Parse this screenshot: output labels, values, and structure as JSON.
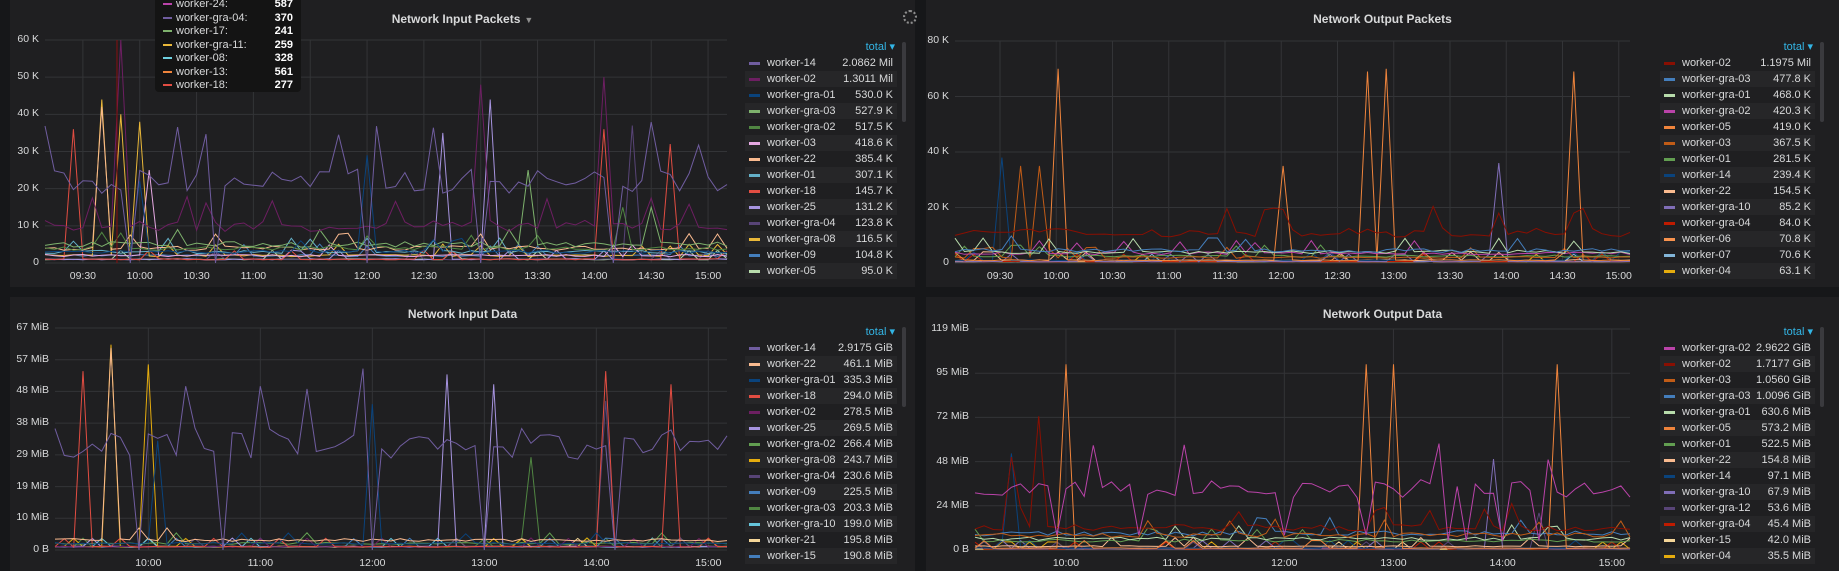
{
  "colors": {
    "accent": "#33b5e5",
    "panel_bg": "#1f1f21",
    "page_bg": "#161719"
  },
  "legend_header": "total",
  "tooltip": {
    "rows": [
      {
        "name": "worker-24:",
        "value": "587",
        "color": "#ba43a9"
      },
      {
        "name": "worker-gra-04:",
        "value": "370",
        "color": "#705da0"
      },
      {
        "name": "worker-17:",
        "value": "241",
        "color": "#7eb26d"
      },
      {
        "name": "worker-gra-11:",
        "value": "259",
        "color": "#eab839"
      },
      {
        "name": "worker-08:",
        "value": "328",
        "color": "#6ed0e0"
      },
      {
        "name": "worker-13:",
        "value": "561",
        "color": "#ef843c"
      },
      {
        "name": "worker-18:",
        "value": "277",
        "color": "#e24d42"
      }
    ]
  },
  "chart_data": [
    {
      "type": "line",
      "title": "Network Input Packets",
      "has_menu": true,
      "x_range_minutes": [
        550,
        910
      ],
      "xticks": [
        "09:30",
        "10:00",
        "10:30",
        "11:00",
        "11:30",
        "12:00",
        "12:30",
        "13:00",
        "13:30",
        "14:00",
        "14:30",
        "15:00"
      ],
      "xtick_minutes": [
        570,
        600,
        630,
        660,
        690,
        720,
        750,
        780,
        810,
        840,
        870,
        900
      ],
      "yticks": [
        "0",
        "10 K",
        "20 K",
        "30 K",
        "40 K",
        "50 K",
        "60 K"
      ],
      "ylim": [
        0,
        60
      ],
      "yunit": "K",
      "series": [
        {
          "name": "worker-14",
          "total": "2.0862 Mil",
          "color": "#705da0",
          "base": 22,
          "events": [
            [
              594,
              0
            ],
            [
              640,
              0
            ],
            [
              722,
              0
            ],
            [
              782,
              0
            ],
            [
              850,
              0
            ]
          ]
        },
        {
          "name": "worker-02",
          "total": "1.3011 Mil",
          "color": "#6d1f62",
          "base": 10,
          "events": [
            [
              588,
              60
            ],
            [
              780,
              48
            ],
            [
              845,
              50
            ]
          ]
        },
        {
          "name": "worker-gra-01",
          "total": "530.0 K",
          "color": "#0a437c",
          "base": 3,
          "events": [
            [
              602,
              22
            ],
            [
              720,
              29
            ]
          ]
        },
        {
          "name": "worker-gra-03",
          "total": "527.9 K",
          "color": "#7eb26d",
          "base": 5,
          "events": [
            [
              805,
              25
            ],
            [
              870,
              15
            ]
          ]
        },
        {
          "name": "worker-gra-02",
          "total": "517.5 K",
          "color": "#508642",
          "base": 4,
          "events": [
            [
              855,
              15
            ]
          ]
        },
        {
          "name": "worker-03",
          "total": "418.6 K",
          "color": "#e5a8e2",
          "base": 2,
          "events": [
            [
              605,
              25
            ]
          ]
        },
        {
          "name": "worker-22",
          "total": "385.4 K",
          "color": "#f9ba8f",
          "base": 4,
          "events": [
            [
              580,
              42
            ]
          ]
        },
        {
          "name": "worker-01",
          "total": "307.1 K",
          "color": "#64b0c8",
          "base": 3,
          "events": []
        },
        {
          "name": "worker-18",
          "total": "145.7 K",
          "color": "#e24d42",
          "base": 1,
          "events": [
            [
              565,
              36
            ],
            [
              845,
              36
            ],
            [
              880,
              32
            ]
          ]
        },
        {
          "name": "worker-25",
          "total": "131.2 K",
          "color": "#a794e0",
          "base": 1,
          "events": [
            [
              760,
              35
            ],
            [
              783,
              44
            ]
          ]
        },
        {
          "name": "worker-gra-04",
          "total": "123.8 K",
          "color": "#584477",
          "base": 1,
          "events": [
            [
              860,
              37
            ]
          ]
        },
        {
          "name": "worker-gra-08",
          "total": "116.5 K",
          "color": "#eab839",
          "base": 2,
          "events": [
            [
              582,
              44
            ],
            [
              590,
              40
            ],
            [
              598,
              38
            ]
          ]
        },
        {
          "name": "worker-09",
          "total": "104.8 K",
          "color": "#447ebc",
          "base": 2,
          "events": []
        },
        {
          "name": "worker-05",
          "total": "95.0 K",
          "color": "#b7dbab",
          "base": 1,
          "events": []
        }
      ]
    },
    {
      "type": "line",
      "title": "Network Output Packets",
      "has_menu": false,
      "x_range_minutes": [
        546,
        906
      ],
      "xticks": [
        "09:30",
        "10:00",
        "10:30",
        "11:00",
        "11:30",
        "12:00",
        "12:30",
        "13:00",
        "13:30",
        "14:00",
        "14:30",
        "15:00"
      ],
      "xtick_minutes": [
        570,
        600,
        630,
        660,
        690,
        720,
        750,
        780,
        810,
        840,
        870,
        900
      ],
      "yticks": [
        "0",
        "20 K",
        "40 K",
        "60 K",
        "80 K"
      ],
      "ylim": [
        0,
        80
      ],
      "yunit": "K",
      "series": [
        {
          "name": "worker-02",
          "total": "1.1975 Mil",
          "color": "#890f02",
          "base": 11,
          "events": [
            [
              835,
              18
            ],
            [
              875,
              18
            ]
          ]
        },
        {
          "name": "worker-gra-03",
          "total": "477.8 K",
          "color": "#447ebc",
          "base": 4.5,
          "events": []
        },
        {
          "name": "worker-gra-01",
          "total": "468.0 K",
          "color": "#b7dbab",
          "base": 4,
          "events": []
        },
        {
          "name": "worker-gra-02",
          "total": "420.3 K",
          "color": "#ba43a9",
          "base": 3.5,
          "events": []
        },
        {
          "name": "worker-05",
          "total": "419.0 K",
          "color": "#ef843c",
          "base": 1,
          "events": [
            [
              600,
              70
            ],
            [
              723,
              35
            ],
            [
              765,
              69
            ],
            [
              778,
              70
            ],
            [
              875,
              69
            ]
          ]
        },
        {
          "name": "worker-03",
          "total": "367.5 K",
          "color": "#c15c17",
          "base": 2,
          "events": [
            [
              580,
              35
            ],
            [
              590,
              35
            ]
          ]
        },
        {
          "name": "worker-01",
          "total": "281.5 K",
          "color": "#629e51",
          "base": 2.5,
          "events": []
        },
        {
          "name": "worker-14",
          "total": "239.4 K",
          "color": "#0a437c",
          "base": 1,
          "events": [
            [
              572,
              38
            ]
          ]
        },
        {
          "name": "worker-22",
          "total": "154.5 K",
          "color": "#f9ba8f",
          "base": 1,
          "events": []
        },
        {
          "name": "worker-gra-10",
          "total": "85.2 K",
          "color": "#806eb7",
          "base": 0.5,
          "events": [
            [
              836,
              36
            ]
          ]
        },
        {
          "name": "worker-gra-04",
          "total": "84.0 K",
          "color": "#bf1b00",
          "base": 0.5,
          "events": []
        },
        {
          "name": "worker-06",
          "total": "70.8 K",
          "color": "#f9934e",
          "base": 0.5,
          "events": []
        },
        {
          "name": "worker-07",
          "total": "70.6 K",
          "color": "#82b5d8",
          "base": 0.5,
          "events": []
        },
        {
          "name": "worker-04",
          "total": "63.1 K",
          "color": "#e5ac0e",
          "base": 0.5,
          "events": []
        }
      ]
    },
    {
      "type": "line",
      "title": "Network Input Data",
      "has_menu": false,
      "x_range_minutes": [
        550,
        910
      ],
      "xticks": [
        "10:00",
        "11:00",
        "12:00",
        "13:00",
        "14:00",
        "15:00"
      ],
      "xtick_minutes": [
        600,
        660,
        720,
        780,
        840,
        900
      ],
      "yticks": [
        "0 B",
        "10 MiB",
        "19 MiB",
        "29 MiB",
        "38 MiB",
        "48 MiB",
        "57 MiB",
        "67 MiB"
      ],
      "ylim": [
        0,
        67
      ],
      "yunit": "MiB",
      "series": [
        {
          "name": "worker-14",
          "total": "2.9175 GiB",
          "color": "#705da0",
          "base": 32,
          "events": [
            [
              594,
              0
            ],
            [
              640,
              0
            ],
            [
              722,
              0
            ],
            [
              782,
              0
            ],
            [
              850,
              0
            ]
          ]
        },
        {
          "name": "worker-22",
          "total": "461.1 MiB",
          "color": "#f9ba8f",
          "base": 3,
          "events": [
            [
              579,
              61
            ]
          ]
        },
        {
          "name": "worker-gra-01",
          "total": "335.3 MiB",
          "color": "#0a437c",
          "base": 2,
          "events": [
            [
              605,
              33
            ],
            [
              720,
              44
            ]
          ]
        },
        {
          "name": "worker-18",
          "total": "294.0 MiB",
          "color": "#e24d42",
          "base": 1,
          "events": [
            [
              563,
              54
            ],
            [
              843,
              54
            ],
            [
              880,
              50
            ]
          ]
        },
        {
          "name": "worker-02",
          "total": "278.5 MiB",
          "color": "#6d1f62",
          "base": 1,
          "events": []
        },
        {
          "name": "worker-25",
          "total": "269.5 MiB",
          "color": "#a794e0",
          "base": 1,
          "events": [
            [
              760,
              53
            ],
            [
              783,
              50
            ]
          ]
        },
        {
          "name": "worker-gra-02",
          "total": "266.4 MiB",
          "color": "#629e51",
          "base": 2,
          "events": []
        },
        {
          "name": "worker-gra-08",
          "total": "243.7 MiB",
          "color": "#e5ac0e",
          "base": 1,
          "events": [
            [
              582,
              62
            ],
            [
              600,
              56
            ]
          ]
        },
        {
          "name": "worker-gra-04",
          "total": "230.6 MiB",
          "color": "#584477",
          "base": 1,
          "events": [
            [
              845,
              45
            ]
          ]
        },
        {
          "name": "worker-09",
          "total": "225.5 MiB",
          "color": "#447ebc",
          "base": 1,
          "events": []
        },
        {
          "name": "worker-gra-03",
          "total": "203.3 MiB",
          "color": "#508642",
          "base": 1,
          "events": [
            [
              805,
              28
            ]
          ]
        },
        {
          "name": "worker-gra-10",
          "total": "199.0 MiB",
          "color": "#65c5db",
          "base": 1,
          "events": []
        },
        {
          "name": "worker-21",
          "total": "195.8 MiB",
          "color": "#f4d598",
          "base": 1,
          "events": []
        },
        {
          "name": "worker-15",
          "total": "190.8 MiB",
          "color": "#447ebc",
          "base": 1,
          "events": []
        }
      ]
    },
    {
      "type": "line",
      "title": "Network Output Data",
      "has_menu": false,
      "x_range_minutes": [
        550,
        910
      ],
      "xticks": [
        "10:00",
        "11:00",
        "12:00",
        "13:00",
        "14:00",
        "15:00"
      ],
      "xtick_minutes": [
        600,
        660,
        720,
        780,
        840,
        900
      ],
      "yticks": [
        "0 B",
        "24 MiB",
        "48 MiB",
        "72 MiB",
        "95 MiB",
        "119 MiB"
      ],
      "ylim": [
        0,
        119
      ],
      "yunit": "MiB",
      "series": [
        {
          "name": "worker-gra-02",
          "total": "2.9622 GiB",
          "color": "#ba43a9",
          "base": 33,
          "events": [
            [
              594,
              8
            ],
            [
              640,
              8
            ],
            [
              722,
              8
            ],
            [
              766,
              8
            ],
            [
              808,
              5
            ],
            [
              822,
              5
            ],
            [
              838,
              5
            ],
            [
              858,
              5
            ]
          ]
        },
        {
          "name": "worker-02",
          "total": "1.7177 GiB",
          "color": "#890f02",
          "base": 12,
          "events": [
            [
              570,
              50
            ],
            [
              585,
              72
            ],
            [
              845,
              25
            ]
          ]
        },
        {
          "name": "worker-03",
          "total": "1.0560 GiB",
          "color": "#c15c17",
          "base": 8,
          "events": []
        },
        {
          "name": "worker-gra-03",
          "total": "1.0096 GiB",
          "color": "#447ebc",
          "base": 9,
          "events": []
        },
        {
          "name": "worker-gra-01",
          "total": "630.6 MiB",
          "color": "#b7dbab",
          "base": 6,
          "events": []
        },
        {
          "name": "worker-05",
          "total": "573.2 MiB",
          "color": "#ef843c",
          "base": 1,
          "events": [
            [
              600,
              100
            ],
            [
              765,
              100
            ],
            [
              778,
              100
            ],
            [
              872,
              100
            ]
          ]
        },
        {
          "name": "worker-01",
          "total": "522.5 MiB",
          "color": "#629e51",
          "base": 5,
          "events": []
        },
        {
          "name": "worker-22",
          "total": "154.8 MiB",
          "color": "#f9ba8f",
          "base": 2,
          "events": []
        },
        {
          "name": "worker-14",
          "total": "97.1 MiB",
          "color": "#0a437c",
          "base": 1,
          "events": [
            [
              572,
              52
            ]
          ]
        },
        {
          "name": "worker-gra-10",
          "total": "67.9 MiB",
          "color": "#806eb7",
          "base": 1,
          "events": [
            [
              836,
              49
            ]
          ]
        },
        {
          "name": "worker-gra-12",
          "total": "53.6 MiB",
          "color": "#584477",
          "base": 0.5,
          "events": [
            [
              858,
              20
            ]
          ]
        },
        {
          "name": "worker-gra-04",
          "total": "45.4 MiB",
          "color": "#bf1b00",
          "base": 0.5,
          "events": []
        },
        {
          "name": "worker-15",
          "total": "42.0 MiB",
          "color": "#f4d598",
          "base": 0.5,
          "events": []
        },
        {
          "name": "worker-04",
          "total": "35.5 MiB",
          "color": "#e5ac0e",
          "base": 0.5,
          "events": []
        }
      ]
    }
  ]
}
